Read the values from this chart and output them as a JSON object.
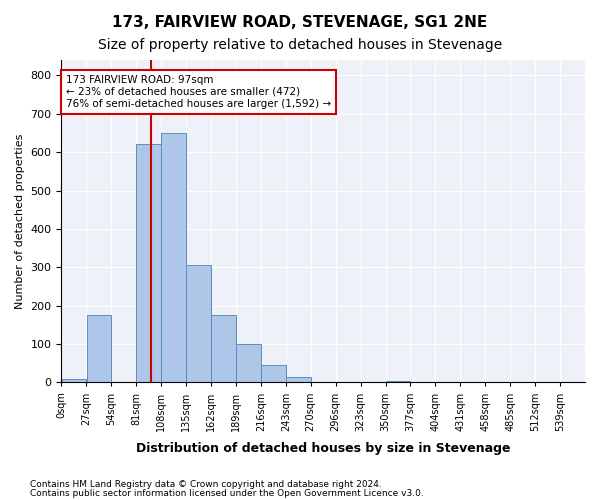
{
  "title": "173, FAIRVIEW ROAD, STEVENAGE, SG1 2NE",
  "subtitle": "Size of property relative to detached houses in Stevenage",
  "xlabel": "Distribution of detached houses by size in Stevenage",
  "ylabel": "Number of detached properties",
  "bin_labels": [
    "0sqm",
    "27sqm",
    "54sqm",
    "81sqm",
    "108sqm",
    "135sqm",
    "162sqm",
    "189sqm",
    "216sqm",
    "243sqm",
    "270sqm",
    "296sqm",
    "323sqm",
    "350sqm",
    "377sqm",
    "404sqm",
    "431sqm",
    "458sqm",
    "485sqm",
    "512sqm",
    "539sqm"
  ],
  "bar_values": [
    10,
    175,
    0,
    620,
    650,
    305,
    175,
    100,
    45,
    15,
    0,
    0,
    0,
    5,
    0,
    0,
    0,
    0,
    0,
    0,
    0
  ],
  "bar_color": "#aec6e8",
  "bar_edge_color": "#5a8fc0",
  "property_line_x": 97,
  "property_line_color": "#cc0000",
  "annotation_text": "173 FAIRVIEW ROAD: 97sqm\n← 23% of detached houses are smaller (472)\n76% of semi-detached houses are larger (1,592) →",
  "annotation_box_color": "#ffffff",
  "annotation_box_edge_color": "#cc0000",
  "ylim": [
    0,
    840
  ],
  "yticks": [
    0,
    100,
    200,
    300,
    400,
    500,
    600,
    700,
    800
  ],
  "background_color": "#eef2f8",
  "footer_line1": "Contains HM Land Registry data © Crown copyright and database right 2024.",
  "footer_line2": "Contains public sector information licensed under the Open Government Licence v3.0.",
  "title_fontsize": 11,
  "subtitle_fontsize": 10,
  "bin_width": 27
}
